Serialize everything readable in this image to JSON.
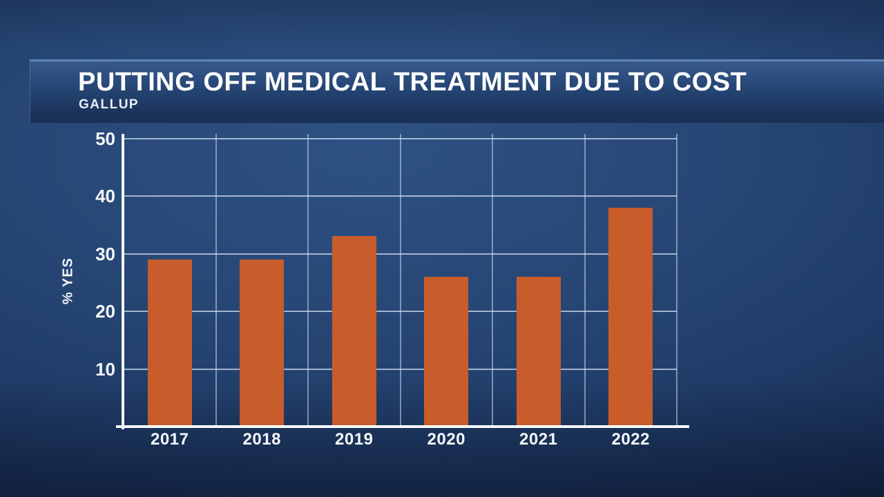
{
  "chart_data": {
    "type": "bar",
    "title": "PUTTING OFF MEDICAL TREATMENT DUE TO COST",
    "subtitle": "GALLUP",
    "categories": [
      "2017",
      "2018",
      "2019",
      "2020",
      "2021",
      "2022"
    ],
    "values": [
      29,
      29,
      33,
      26,
      26,
      38
    ],
    "xlabel": "",
    "ylabel": "% YES",
    "ylim": [
      0,
      50
    ],
    "yticks": [
      10,
      20,
      30,
      40,
      50
    ],
    "grid": true,
    "legend": "none",
    "bar_color": "#c95c2b",
    "background_color": "#24406d",
    "axis_color": "#f6fafe",
    "gridline_color": "#d7e5f6",
    "text_color": "#f4f7fb"
  }
}
